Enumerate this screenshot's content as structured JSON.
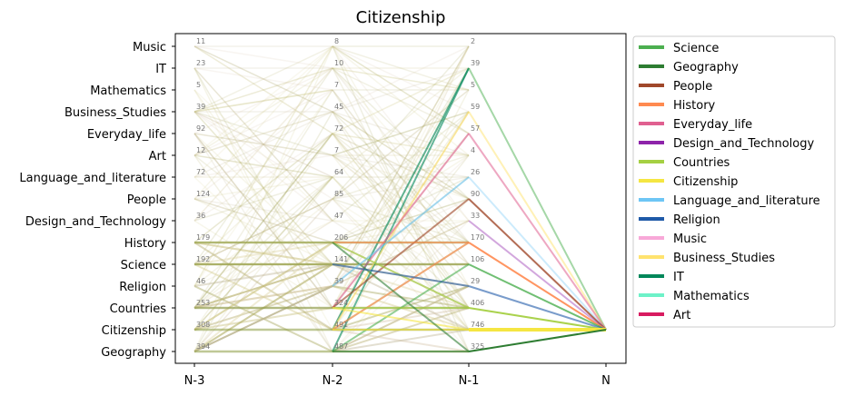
{
  "chart_data": {
    "type": "line",
    "title": "Citizenship",
    "xlabel": "",
    "ylabel": "",
    "x": [
      "N-3",
      "N-2",
      "N-1",
      "N"
    ],
    "categories": [
      "Music",
      "IT",
      "Mathematics",
      "Business_Studies",
      "Everyday_life",
      "Art",
      "Language_and_literature",
      "People",
      "Design_and_Technology",
      "History",
      "Science",
      "Religion",
      "Countries",
      "Citizenship",
      "Geography"
    ],
    "counts": [
      {
        "step": "N-3",
        "values": [
          "11",
          "23",
          "5",
          "39",
          "92",
          "12",
          "72",
          "124",
          "36",
          "179",
          "192",
          "46",
          "253",
          "308",
          "394"
        ]
      },
      {
        "step": "N-2",
        "values": [
          "8",
          "10",
          "7",
          "45",
          "72",
          "7",
          "64",
          "85",
          "47",
          "206",
          "141",
          "39",
          "324",
          "491",
          "487"
        ]
      },
      {
        "step": "N-1",
        "values": [
          "2",
          "39",
          "5",
          "59",
          "57",
          "4",
          "26",
          "90",
          "33",
          "170",
          "106",
          "29",
          "406",
          "746",
          "325"
        ]
      }
    ],
    "target": "Citizenship",
    "legend": [
      {
        "name": "Science",
        "color": "#4caf50"
      },
      {
        "name": "Geography",
        "color": "#2e7d32"
      },
      {
        "name": "People",
        "color": "#a0482a"
      },
      {
        "name": "History",
        "color": "#ff8a50"
      },
      {
        "name": "Everyday_life",
        "color": "#e06090"
      },
      {
        "name": "Design_and_Technology",
        "color": "#8e24aa"
      },
      {
        "name": "Countries",
        "color": "#a5d043"
      },
      {
        "name": "Citizenship",
        "color": "#f5e642"
      },
      {
        "name": "Language_and_literature",
        "color": "#6ec6f5"
      },
      {
        "name": "Religion",
        "color": "#1f5aa8"
      },
      {
        "name": "Music",
        "color": "#f8a8d8"
      },
      {
        "name": "Business_Studies",
        "color": "#ffe36e"
      },
      {
        "name": "IT",
        "color": "#00875a"
      },
      {
        "name": "Mathematics",
        "color": "#6ef2c8"
      },
      {
        "name": "Art",
        "color": "#d81b60"
      }
    ],
    "grid": false,
    "legend_position": "outside-right"
  }
}
